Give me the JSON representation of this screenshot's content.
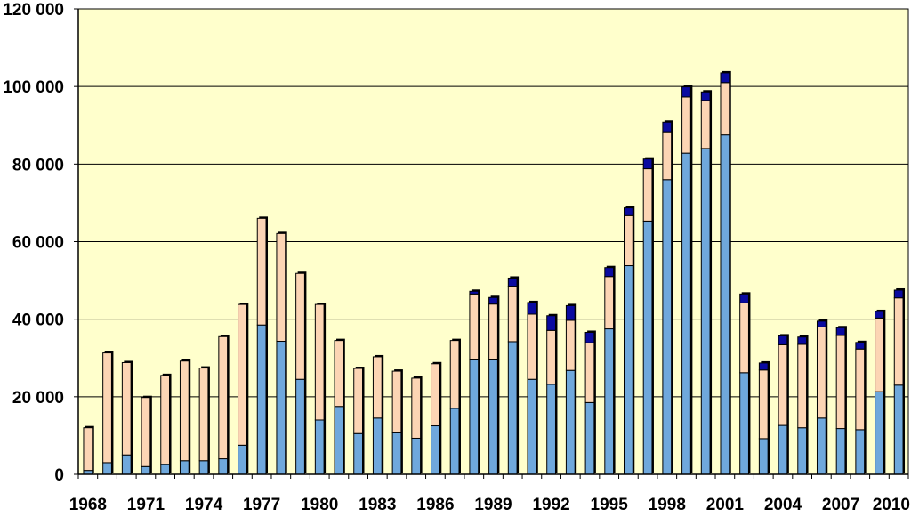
{
  "chart_data": {
    "type": "bar",
    "stacked": true,
    "title": "",
    "xlabel": "",
    "ylabel": "",
    "ylim": [
      0,
      120000
    ],
    "grid": true,
    "legend": "none",
    "categories": [
      "1968",
      "1969",
      "1970",
      "1971",
      "1972",
      "1973",
      "1974",
      "1975",
      "1976",
      "1977",
      "1978",
      "1979",
      "1980",
      "1981",
      "1982",
      "1983",
      "1984",
      "1985",
      "1986",
      "1987",
      "1988",
      "1989",
      "1990",
      "1991",
      "1992",
      "1993",
      "1994",
      "1995",
      "1996",
      "1997",
      "1998",
      "1999",
      "2000",
      "2001",
      "2002",
      "2003",
      "2004",
      "2005",
      "2006",
      "2007",
      "2008",
      "2009",
      "2010"
    ],
    "x_tick_labels": [
      "1968",
      "1971",
      "1974",
      "1977",
      "1980",
      "1983",
      "1986",
      "1989",
      "1992",
      "1995",
      "1998",
      "2001",
      "2004",
      "2007",
      "2010"
    ],
    "y_tick_labels": [
      "0",
      "20 000",
      "40 000",
      "60 000",
      "80 000",
      "100 000",
      "120 000"
    ],
    "y_ticks": [
      0,
      20000,
      40000,
      60000,
      80000,
      100000,
      120000
    ],
    "series": [
      {
        "color": "#6fa8dc",
        "values": [
          1000,
          3000,
          5000,
          2000,
          2500,
          3500,
          3500,
          4000,
          7500,
          38500,
          34300,
          24500,
          14000,
          17500,
          10500,
          14500,
          10700,
          9300,
          12500,
          17000,
          29500,
          29500,
          34200,
          24500,
          23200,
          26800,
          18500,
          37500,
          53800,
          65300,
          76000,
          82800,
          84000,
          87500,
          26200,
          9200,
          12600,
          12000,
          14500,
          11800,
          11500,
          21300,
          23000
        ]
      },
      {
        "color": "#fcd5b4",
        "values": [
          11000,
          28300,
          23800,
          17800,
          23000,
          25700,
          23900,
          31500,
          36300,
          27500,
          27800,
          27300,
          29800,
          17000,
          16800,
          15800,
          15900,
          15500,
          16000,
          17500,
          17000,
          14400,
          14300,
          16800,
          13900,
          12900,
          15400,
          13500,
          12900,
          13500,
          12300,
          14500,
          12400,
          13500,
          18000,
          17700,
          20800,
          21500,
          23500,
          24000,
          20800,
          19000,
          22500
        ]
      },
      {
        "color": "#0a0aa0",
        "values": [
          0,
          0,
          0,
          0,
          0,
          0,
          0,
          0,
          0,
          0,
          0,
          0,
          0,
          0,
          0,
          0,
          0,
          0,
          0,
          0,
          700,
          1700,
          2100,
          3000,
          3800,
          3800,
          2700,
          2300,
          2000,
          2500,
          2500,
          2600,
          2200,
          2500,
          2300,
          1800,
          2300,
          1900,
          1500,
          2000,
          1700,
          1700,
          2000
        ]
      }
    ]
  },
  "colors": {
    "plot_background": "#ffffcc",
    "gridline": "#000000",
    "bar_outline": "#000000"
  }
}
